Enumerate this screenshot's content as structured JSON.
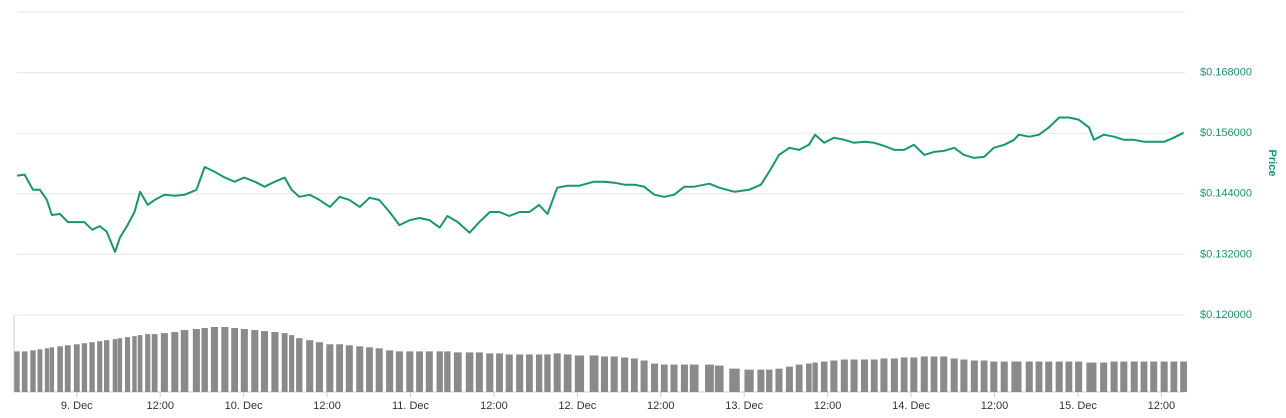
{
  "chart_data": {
    "type": "line",
    "ylabel": "Price",
    "xlim": [
      -8.6,
      159.4
    ],
    "xticks": [
      {
        "value": 0,
        "label": "9. Dec"
      },
      {
        "value": 12,
        "label": "12:00"
      },
      {
        "value": 24,
        "label": "10. Dec"
      },
      {
        "value": 36,
        "label": "12:00"
      },
      {
        "value": 48,
        "label": "11. Dec"
      },
      {
        "value": 60,
        "label": "12:00"
      },
      {
        "value": 72,
        "label": "12. Dec"
      },
      {
        "value": 84,
        "label": "12:00"
      },
      {
        "value": 96,
        "label": "13. Dec"
      },
      {
        "value": 108,
        "label": "12:00"
      },
      {
        "value": 120,
        "label": "14. Dec"
      },
      {
        "value": 132,
        "label": "12:00"
      },
      {
        "value": 144,
        "label": "15. Dec"
      },
      {
        "value": 156,
        "label": "12:00"
      }
    ],
    "ylim": [
      0.12,
      0.18
    ],
    "yticks": [
      {
        "value": 0.12,
        "label": "$0.120000"
      },
      {
        "value": 0.132,
        "label": "$0.132000"
      },
      {
        "value": 0.144,
        "label": "$0.144000"
      },
      {
        "value": 0.156,
        "label": "$0.156000"
      },
      {
        "value": 0.168,
        "label": "$0.168000"
      }
    ],
    "grid": true,
    "x": [
      -8.6,
      -7.5,
      -6.3,
      -5.3,
      -4.3,
      -3.6,
      -2.4,
      -1.3,
      0,
      1.1,
      2.2,
      3.3,
      4.3,
      5.5,
      6.2,
      7.3,
      8.3,
      9.1,
      10.2,
      11.2,
      12.6,
      14.1,
      15.5,
      17.2,
      18.4,
      19.8,
      21.3,
      22.7,
      24.1,
      25.6,
      27.0,
      28.5,
      29.9,
      30.9,
      32.0,
      33.5,
      34.9,
      36.4,
      37.8,
      39.2,
      40.7,
      42.1,
      43.5,
      45.0,
      46.4,
      47.9,
      49.3,
      50.7,
      52.2,
      53.3,
      54.8,
      56.5,
      57.9,
      59.4,
      60.8,
      62.2,
      63.7,
      65.1,
      66.5,
      67.7,
      69.1,
      70.6,
      72.3,
      74.4,
      75.9,
      77.3,
      78.8,
      80.2,
      81.6,
      83.1,
      84.5,
      85.9,
      87.4,
      88.8,
      91.0,
      92.4,
      94.6,
      96.7,
      98.4,
      99.6,
      101.0,
      102.5,
      103.9,
      105.3,
      106.2,
      107.5,
      108.9,
      110.4,
      111.8,
      113.3,
      114.7,
      116.1,
      117.6,
      119.0,
      120.4,
      121.9,
      123.3,
      124.7,
      126.2,
      127.6,
      129.1,
      130.5,
      131.9,
      133.4,
      134.8,
      135.5,
      137.0,
      138.4,
      139.8,
      141.3,
      142.7,
      144.1,
      145.6,
      146.3,
      147.7,
      149.2,
      150.6,
      152.1,
      153.5,
      154.9,
      156.4,
      157.8,
      159.2
    ],
    "series": [
      {
        "color": "#16986a",
        "values": [
          0.1476,
          0.1478,
          0.1448,
          0.1448,
          0.1428,
          0.1398,
          0.14,
          0.1384,
          0.1384,
          0.1384,
          0.1369,
          0.1376,
          0.1365,
          0.1325,
          0.1353,
          0.1378,
          0.1404,
          0.1444,
          0.1418,
          0.1428,
          0.1438,
          0.1436,
          0.1438,
          0.1448,
          0.1493,
          0.1484,
          0.1472,
          0.1464,
          0.1472,
          0.1464,
          0.1454,
          0.1464,
          0.1472,
          0.1448,
          0.1434,
          0.1438,
          0.1428,
          0.1414,
          0.1434,
          0.1428,
          0.1414,
          0.1432,
          0.1428,
          0.1404,
          0.1378,
          0.1388,
          0.1392,
          0.1388,
          0.1373,
          0.1396,
          0.1384,
          0.1363,
          0.1384,
          0.1404,
          0.1404,
          0.1396,
          0.1404,
          0.1404,
          0.1418,
          0.14,
          0.1452,
          0.1456,
          0.1456,
          0.1464,
          0.1464,
          0.1462,
          0.1458,
          0.1458,
          0.1454,
          0.1438,
          0.1434,
          0.1438,
          0.1454,
          0.1454,
          0.146,
          0.1452,
          0.1444,
          0.1448,
          0.1458,
          0.1484,
          0.1517,
          0.1531,
          0.1527,
          0.1537,
          0.1557,
          0.1541,
          0.1551,
          0.1547,
          0.1541,
          0.1543,
          0.1541,
          0.1535,
          0.1527,
          0.1527,
          0.1537,
          0.1517,
          0.1523,
          0.1525,
          0.1531,
          0.1517,
          0.1511,
          0.1513,
          0.1531,
          0.1537,
          0.1547,
          0.1557,
          0.1553,
          0.1557,
          0.1571,
          0.1591,
          0.1591,
          0.1587,
          0.1571,
          0.1547,
          0.1557,
          0.1553,
          0.1547,
          0.1547,
          0.1543,
          0.1543,
          0.1543,
          0.1551,
          0.1561
        ]
      }
    ],
    "volume": {
      "color": "#8a8a8a",
      "values": [
        40,
        40,
        41,
        42,
        43,
        44,
        45,
        46,
        47,
        48,
        49,
        50,
        51,
        52,
        53,
        54,
        55,
        56,
        57,
        57,
        58,
        59,
        61,
        62,
        63,
        64,
        64,
        63,
        62,
        61,
        60,
        59,
        58,
        56,
        53,
        51,
        49,
        47,
        47,
        46,
        45,
        44,
        43,
        41,
        40,
        40,
        40,
        40,
        40,
        40,
        39,
        39,
        39,
        38,
        38,
        37,
        37,
        37,
        37,
        37,
        38,
        37,
        36,
        36,
        35,
        35,
        34,
        33,
        31,
        28,
        27,
        27,
        27,
        27,
        27,
        26,
        23,
        22,
        22,
        22,
        23,
        25,
        27,
        28,
        29,
        30,
        31,
        32,
        32,
        32,
        32,
        33,
        33,
        34,
        34,
        35,
        35,
        35,
        33,
        32,
        31,
        31,
        30,
        30,
        30,
        30,
        30,
        30,
        30,
        30,
        30,
        30,
        29,
        29,
        29,
        30,
        30,
        30,
        30,
        30,
        30,
        30,
        30
      ]
    }
  }
}
